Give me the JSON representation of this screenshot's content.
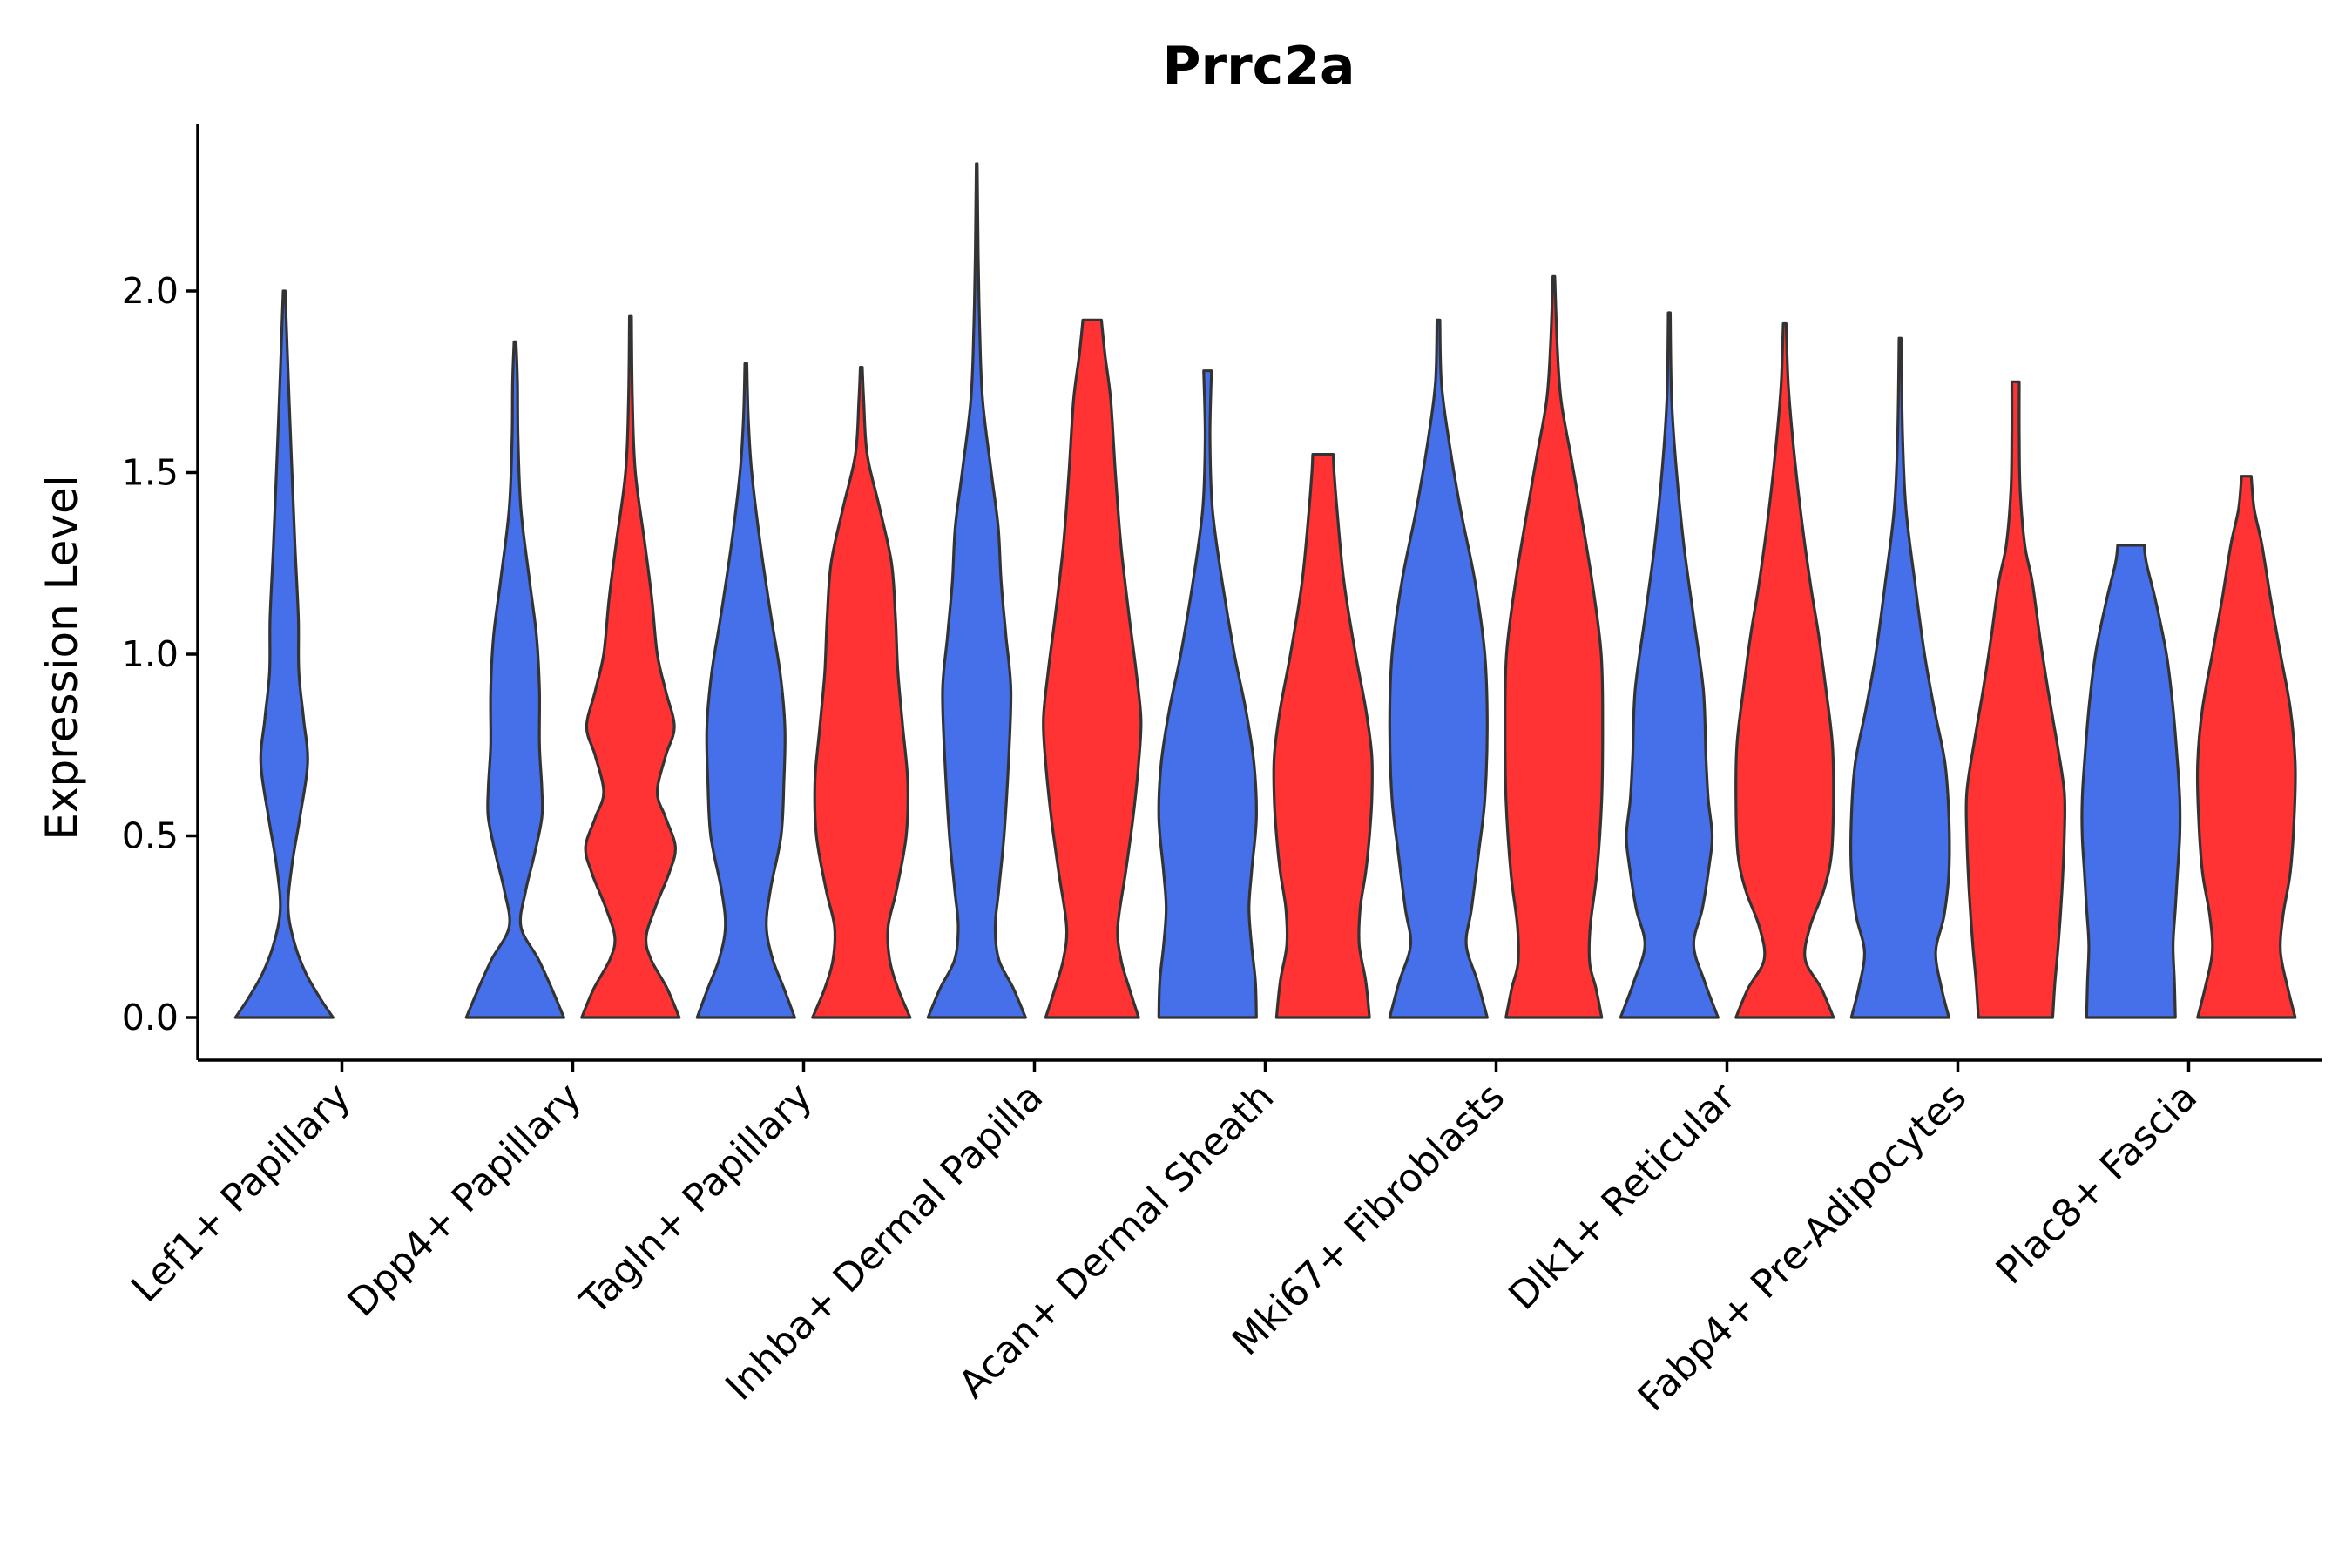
{
  "chart_data": {
    "type": "violin",
    "title": "Prrc2a",
    "xlabel": "",
    "ylabel": "Expression Level",
    "ylim": [
      -0.12,
      2.48
    ],
    "yticks": [
      "0.0",
      "0.5",
      "1.0",
      "1.5",
      "2.0"
    ],
    "grid": false,
    "legend": "none",
    "colors": {
      "group1": "#4570EA",
      "group2": "#FF3333",
      "outline": "#333333"
    },
    "categories": [
      "Lef1+ Papillary",
      "Dpp4+ Papillary",
      "Tagln+ Papillary",
      "Inhba+ Dermal Papilla",
      "Acan+ Dermal Sheath",
      "Mki67+ Fibroblasts",
      "Dlk1+ Reticular",
      "Fabp4+ Pre-Adipocytes",
      "Plac8+ Fascia"
    ],
    "violins": [
      {
        "category": "Lef1+ Papillary",
        "group": 1,
        "max": 2.0,
        "profile": [
          [
            0.0,
            1.0
          ],
          [
            0.05,
            0.75
          ],
          [
            0.12,
            0.45
          ],
          [
            0.2,
            0.22
          ],
          [
            0.3,
            0.08
          ],
          [
            0.42,
            0.16
          ],
          [
            0.55,
            0.32
          ],
          [
            0.7,
            0.48
          ],
          [
            0.82,
            0.4
          ],
          [
            0.95,
            0.3
          ],
          [
            1.1,
            0.29
          ],
          [
            1.3,
            0.22
          ],
          [
            1.5,
            0.16
          ],
          [
            1.7,
            0.1
          ],
          [
            1.85,
            0.06
          ],
          [
            2.0,
            0.02
          ]
        ]
      },
      {
        "category": "Dpp4+ Papillary",
        "group": 1,
        "max": 1.86,
        "profile": [
          [
            0.0,
            1.0
          ],
          [
            0.08,
            0.75
          ],
          [
            0.16,
            0.48
          ],
          [
            0.25,
            0.12
          ],
          [
            0.35,
            0.22
          ],
          [
            0.45,
            0.4
          ],
          [
            0.55,
            0.55
          ],
          [
            0.63,
            0.55
          ],
          [
            0.75,
            0.5
          ],
          [
            0.9,
            0.5
          ],
          [
            1.05,
            0.44
          ],
          [
            1.2,
            0.3
          ],
          [
            1.4,
            0.12
          ],
          [
            1.6,
            0.06
          ],
          [
            1.75,
            0.05
          ],
          [
            1.86,
            0.02
          ]
        ]
      },
      {
        "category": "Dpp4+ Papillary",
        "group": 2,
        "max": 1.93,
        "profile": [
          [
            0.0,
            1.0
          ],
          [
            0.08,
            0.75
          ],
          [
            0.16,
            0.42
          ],
          [
            0.22,
            0.32
          ],
          [
            0.3,
            0.5
          ],
          [
            0.4,
            0.8
          ],
          [
            0.47,
            0.92
          ],
          [
            0.55,
            0.72
          ],
          [
            0.62,
            0.55
          ],
          [
            0.72,
            0.72
          ],
          [
            0.8,
            0.9
          ],
          [
            0.9,
            0.72
          ],
          [
            1.0,
            0.55
          ],
          [
            1.15,
            0.44
          ],
          [
            1.3,
            0.3
          ],
          [
            1.5,
            0.1
          ],
          [
            1.7,
            0.04
          ],
          [
            1.93,
            0.02
          ]
        ]
      },
      {
        "category": "Tagln+ Papillary",
        "group": 1,
        "max": 1.8,
        "profile": [
          [
            0.0,
            1.0
          ],
          [
            0.08,
            0.78
          ],
          [
            0.16,
            0.55
          ],
          [
            0.25,
            0.42
          ],
          [
            0.35,
            0.5
          ],
          [
            0.5,
            0.72
          ],
          [
            0.65,
            0.78
          ],
          [
            0.8,
            0.8
          ],
          [
            0.95,
            0.7
          ],
          [
            1.1,
            0.52
          ],
          [
            1.3,
            0.3
          ],
          [
            1.5,
            0.12
          ],
          [
            1.65,
            0.05
          ],
          [
            1.8,
            0.02
          ]
        ]
      },
      {
        "category": "Tagln+ Papillary",
        "group": 2,
        "max": 1.79,
        "profile": [
          [
            0.0,
            1.0
          ],
          [
            0.08,
            0.75
          ],
          [
            0.16,
            0.58
          ],
          [
            0.25,
            0.55
          ],
          [
            0.35,
            0.72
          ],
          [
            0.5,
            0.92
          ],
          [
            0.65,
            0.95
          ],
          [
            0.8,
            0.85
          ],
          [
            0.95,
            0.75
          ],
          [
            1.1,
            0.7
          ],
          [
            1.25,
            0.62
          ],
          [
            1.4,
            0.38
          ],
          [
            1.55,
            0.12
          ],
          [
            1.7,
            0.05
          ],
          [
            1.79,
            0.02
          ]
        ]
      },
      {
        "category": "Inhba+ Dermal Papilla",
        "group": 1,
        "max": 2.35,
        "profile": [
          [
            0.0,
            1.0
          ],
          [
            0.08,
            0.75
          ],
          [
            0.16,
            0.45
          ],
          [
            0.25,
            0.38
          ],
          [
            0.35,
            0.45
          ],
          [
            0.5,
            0.56
          ],
          [
            0.7,
            0.65
          ],
          [
            0.9,
            0.7
          ],
          [
            1.05,
            0.6
          ],
          [
            1.2,
            0.5
          ],
          [
            1.35,
            0.44
          ],
          [
            1.5,
            0.3
          ],
          [
            1.7,
            0.12
          ],
          [
            1.9,
            0.06
          ],
          [
            2.1,
            0.03
          ],
          [
            2.35,
            0.01
          ]
        ]
      },
      {
        "category": "Inhba+ Dermal Papilla",
        "group": 2,
        "max": 1.92,
        "profile": [
          [
            0.0,
            1.0
          ],
          [
            0.08,
            0.8
          ],
          [
            0.16,
            0.62
          ],
          [
            0.25,
            0.55
          ],
          [
            0.4,
            0.72
          ],
          [
            0.55,
            0.88
          ],
          [
            0.7,
            1.0
          ],
          [
            0.82,
            1.05
          ],
          [
            0.95,
            0.95
          ],
          [
            1.1,
            0.8
          ],
          [
            1.3,
            0.62
          ],
          [
            1.5,
            0.5
          ],
          [
            1.7,
            0.4
          ],
          [
            1.82,
            0.28
          ],
          [
            1.92,
            0.2
          ]
        ]
      },
      {
        "category": "Acan+ Dermal Sheath",
        "group": 1,
        "max": 1.78,
        "profile": [
          [
            0.0,
            1.0
          ],
          [
            0.1,
            0.98
          ],
          [
            0.2,
            0.9
          ],
          [
            0.3,
            0.85
          ],
          [
            0.4,
            0.9
          ],
          [
            0.55,
            1.0
          ],
          [
            0.7,
            0.95
          ],
          [
            0.85,
            0.78
          ],
          [
            1.0,
            0.55
          ],
          [
            1.2,
            0.3
          ],
          [
            1.4,
            0.1
          ],
          [
            1.6,
            0.05
          ],
          [
            1.78,
            0.08
          ]
        ]
      },
      {
        "category": "Acan+ Dermal Sheath",
        "group": 2,
        "max": 1.55,
        "profile": [
          [
            0.0,
            1.0
          ],
          [
            0.1,
            0.92
          ],
          [
            0.2,
            0.78
          ],
          [
            0.3,
            0.8
          ],
          [
            0.4,
            0.92
          ],
          [
            0.5,
            1.0
          ],
          [
            0.6,
            1.05
          ],
          [
            0.72,
            1.05
          ],
          [
            0.85,
            0.92
          ],
          [
            1.0,
            0.7
          ],
          [
            1.2,
            0.45
          ],
          [
            1.4,
            0.3
          ],
          [
            1.5,
            0.24
          ],
          [
            1.55,
            0.22
          ]
        ]
      },
      {
        "category": "Mki67+ Fibroblasts",
        "group": 1,
        "max": 1.92,
        "profile": [
          [
            0.0,
            1.0
          ],
          [
            0.1,
            0.8
          ],
          [
            0.2,
            0.57
          ],
          [
            0.3,
            0.68
          ],
          [
            0.45,
            0.82
          ],
          [
            0.6,
            0.95
          ],
          [
            0.8,
            1.0
          ],
          [
            1.0,
            0.95
          ],
          [
            1.2,
            0.75
          ],
          [
            1.4,
            0.45
          ],
          [
            1.6,
            0.2
          ],
          [
            1.75,
            0.06
          ],
          [
            1.92,
            0.03
          ]
        ]
      },
      {
        "category": "Mki67+ Fibroblasts",
        "group": 2,
        "max": 2.04,
        "profile": [
          [
            0.0,
            1.0
          ],
          [
            0.08,
            0.88
          ],
          [
            0.15,
            0.75
          ],
          [
            0.25,
            0.76
          ],
          [
            0.4,
            0.9
          ],
          [
            0.6,
            1.0
          ],
          [
            0.8,
            1.02
          ],
          [
            1.0,
            0.99
          ],
          [
            1.2,
            0.8
          ],
          [
            1.4,
            0.55
          ],
          [
            1.55,
            0.35
          ],
          [
            1.7,
            0.15
          ],
          [
            1.85,
            0.07
          ],
          [
            2.04,
            0.02
          ]
        ]
      },
      {
        "category": "Dlk1+ Reticular",
        "group": 1,
        "max": 1.94,
        "profile": [
          [
            0.0,
            1.0
          ],
          [
            0.1,
            0.72
          ],
          [
            0.2,
            0.5
          ],
          [
            0.3,
            0.68
          ],
          [
            0.42,
            0.82
          ],
          [
            0.5,
            0.88
          ],
          [
            0.6,
            0.8
          ],
          [
            0.72,
            0.75
          ],
          [
            0.9,
            0.7
          ],
          [
            1.1,
            0.5
          ],
          [
            1.3,
            0.3
          ],
          [
            1.5,
            0.15
          ],
          [
            1.7,
            0.05
          ],
          [
            1.94,
            0.02
          ]
        ]
      },
      {
        "category": "Dlk1+ Reticular",
        "group": 2,
        "max": 1.91,
        "profile": [
          [
            0.0,
            1.0
          ],
          [
            0.08,
            0.75
          ],
          [
            0.16,
            0.42
          ],
          [
            0.25,
            0.52
          ],
          [
            0.35,
            0.8
          ],
          [
            0.45,
            0.96
          ],
          [
            0.6,
            1.0
          ],
          [
            0.75,
            0.98
          ],
          [
            0.9,
            0.85
          ],
          [
            1.05,
            0.7
          ],
          [
            1.2,
            0.52
          ],
          [
            1.4,
            0.32
          ],
          [
            1.6,
            0.16
          ],
          [
            1.75,
            0.07
          ],
          [
            1.91,
            0.03
          ]
        ]
      },
      {
        "category": "Fabp4+ Pre-Adipocytes",
        "group": 1,
        "max": 1.87,
        "profile": [
          [
            0.0,
            1.0
          ],
          [
            0.08,
            0.85
          ],
          [
            0.18,
            0.73
          ],
          [
            0.28,
            0.9
          ],
          [
            0.4,
            1.0
          ],
          [
            0.55,
            1.0
          ],
          [
            0.7,
            0.92
          ],
          [
            0.85,
            0.7
          ],
          [
            1.0,
            0.5
          ],
          [
            1.2,
            0.3
          ],
          [
            1.4,
            0.12
          ],
          [
            1.6,
            0.05
          ],
          [
            1.87,
            0.02
          ]
        ]
      },
      {
        "category": "Fabp4+ Pre-Adipocytes",
        "group": 2,
        "max": 1.75,
        "profile": [
          [
            0.0,
            0.8
          ],
          [
            0.1,
            0.85
          ],
          [
            0.2,
            0.92
          ],
          [
            0.35,
            1.0
          ],
          [
            0.5,
            1.05
          ],
          [
            0.62,
            1.05
          ],
          [
            0.75,
            0.9
          ],
          [
            0.9,
            0.7
          ],
          [
            1.05,
            0.52
          ],
          [
            1.2,
            0.36
          ],
          [
            1.3,
            0.2
          ],
          [
            1.45,
            0.1
          ],
          [
            1.6,
            0.08
          ],
          [
            1.75,
            0.08
          ]
        ]
      },
      {
        "category": "Plac8+ Fascia",
        "group": 1,
        "max": 1.3,
        "profile": [
          [
            0.0,
            1.0
          ],
          [
            0.1,
            0.98
          ],
          [
            0.2,
            0.95
          ],
          [
            0.3,
            1.0
          ],
          [
            0.4,
            1.05
          ],
          [
            0.5,
            1.1
          ],
          [
            0.6,
            1.1
          ],
          [
            0.7,
            1.05
          ],
          [
            0.85,
            0.95
          ],
          [
            1.0,
            0.8
          ],
          [
            1.15,
            0.55
          ],
          [
            1.25,
            0.35
          ],
          [
            1.3,
            0.3
          ]
        ]
      },
      {
        "category": "Plac8+ Fascia",
        "group": 2,
        "max": 1.49,
        "profile": [
          [
            0.0,
            1.0
          ],
          [
            0.08,
            0.85
          ],
          [
            0.18,
            0.7
          ],
          [
            0.28,
            0.75
          ],
          [
            0.4,
            0.9
          ],
          [
            0.55,
            0.98
          ],
          [
            0.7,
            1.0
          ],
          [
            0.85,
            0.9
          ],
          [
            1.0,
            0.7
          ],
          [
            1.15,
            0.5
          ],
          [
            1.3,
            0.32
          ],
          [
            1.4,
            0.16
          ],
          [
            1.49,
            0.1
          ]
        ]
      }
    ]
  }
}
